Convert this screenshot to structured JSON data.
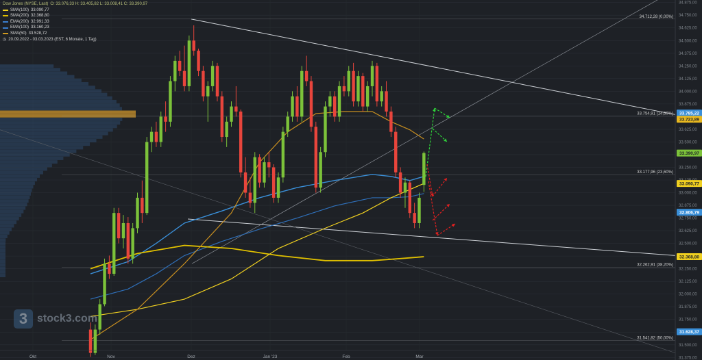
{
  "header": {
    "instrument": "Dow Jones (NYSE, Last)",
    "ohlc": "O: 33.076,33  H: 33.405,82  L: 33.008,41  C: 33.390,97",
    "indicators": [
      {
        "label": "SMA(100)",
        "value": "33.090,77",
        "color": "#f0d020"
      },
      {
        "label": "SMA(200)",
        "value": "32.368,80",
        "color": "#e0c000"
      },
      {
        "label": "EMA(200)",
        "value": "32.991,33",
        "color": "#3a7fd0"
      },
      {
        "label": "EMA(100)",
        "value": "33.160,23",
        "color": "#3a7fd0"
      },
      {
        "label": "SMA(50)",
        "value": "33.528,72",
        "color": "#d09a20"
      }
    ],
    "range": "20.09.2022 - 03.03.2023   (EST, 6 Monate, 1 Tag)"
  },
  "logo": {
    "mark": "3",
    "text": "stock3.com"
  },
  "chart_data": {
    "type": "candlestick",
    "title": "Dow Jones (NYSE, Last)",
    "ylim": [
      31350,
      34900
    ],
    "y_ticks": [
      "31.375,00",
      "31.500,00",
      "31.625,00",
      "31.750,00",
      "31.875,00",
      "32.000,00",
      "32.125,00",
      "32.250,00",
      "32.375,00",
      "32.500,00",
      "32.625,00",
      "32.750,00",
      "32.875,00",
      "33.000,00",
      "33.125,00",
      "33.250,00",
      "33.375,00",
      "33.500,00",
      "33.625,00",
      "33.750,00",
      "33.875,00",
      "34.000,00",
      "34.125,00",
      "34.250,00",
      "34.375,00",
      "34.500,00",
      "34.625,00",
      "34.750,00",
      "34.875,00"
    ],
    "x_labels": [
      "Okt",
      "Nov",
      "Dez",
      "Jan '23",
      "Feb",
      "Mar"
    ],
    "fib_levels": [
      {
        "label": "34.712,28 (0,00%)",
        "value": 34712.28
      },
      {
        "label": "33.754,91 (14,60%)",
        "value": 33754.91
      },
      {
        "label": "33.177,96 (23,60%)",
        "value": 33177.96
      },
      {
        "label": "32.262,91 (38,20%)",
        "value": 32262.91
      },
      {
        "label": "31.541,82 (50,00%)",
        "value": 31541.82
      }
    ],
    "price_tags": [
      {
        "label": "33.785,22",
        "value": 33785.22,
        "color": "#3a8fd8",
        "text_color": "#ffffff"
      },
      {
        "label": "33.723,89",
        "value": 33723.89,
        "color": "#e8b820",
        "text_color": "#1e2126"
      },
      {
        "label": "33.390,97",
        "value": 33390.97,
        "color": "#7cc23a",
        "text_color": "#1e2126"
      },
      {
        "label": "33.090,77",
        "value": 33090.77,
        "color": "#f0d020",
        "text_color": "#1e2126"
      },
      {
        "label": "32.806,79",
        "value": 32806.79,
        "color": "#3a8fd8",
        "text_color": "#ffffff"
      },
      {
        "label": "32.368,80",
        "value": 32368.8,
        "color": "#f0d020",
        "text_color": "#1e2126"
      },
      {
        "label": "31.628,37",
        "value": 31628.37,
        "color": "#3a8fd8",
        "text_color": "#ffffff"
      }
    ],
    "candles_ohlc": [
      [
        31650,
        31720,
        31380,
        31420
      ],
      [
        31420,
        31700,
        31400,
        31650
      ],
      [
        31650,
        31950,
        31600,
        31900
      ],
      [
        31900,
        32350,
        31880,
        32300
      ],
      [
        32300,
        32380,
        32150,
        32200
      ],
      [
        32200,
        32850,
        32180,
        32800
      ],
      [
        32800,
        32850,
        32500,
        32550
      ],
      [
        32550,
        32780,
        32450,
        32700
      ],
      [
        32700,
        32760,
        32300,
        32350
      ],
      [
        32350,
        32700,
        32300,
        32650
      ],
      [
        32650,
        33000,
        32600,
        32950
      ],
      [
        32950,
        33120,
        32700,
        32800
      ],
      [
        32800,
        33550,
        32780,
        33500
      ],
      [
        33500,
        33650,
        33400,
        33600
      ],
      [
        33600,
        33700,
        33450,
        33500
      ],
      [
        33500,
        33800,
        33450,
        33750
      ],
      [
        33750,
        33900,
        33600,
        33700
      ],
      [
        33700,
        34150,
        33650,
        34100
      ],
      [
        34100,
        34350,
        34000,
        34300
      ],
      [
        34300,
        34400,
        34150,
        34200
      ],
      [
        34200,
        34450,
        34000,
        34050
      ],
      [
        34050,
        34550,
        34000,
        34500
      ],
      [
        34500,
        34650,
        34350,
        34400
      ],
      [
        34400,
        34420,
        34150,
        34200
      ],
      [
        34200,
        34250,
        33900,
        33950
      ],
      [
        33950,
        34100,
        33700,
        34050
      ],
      [
        34050,
        34300,
        34000,
        34250
      ],
      [
        34250,
        34280,
        33900,
        33950
      ],
      [
        33950,
        34000,
        33500,
        33550
      ],
      [
        33550,
        33750,
        33450,
        33700
      ],
      [
        33700,
        33900,
        33650,
        33850
      ],
      [
        33850,
        34050,
        33750,
        33800
      ],
      [
        33800,
        33820,
        33150,
        33200
      ],
      [
        33200,
        33350,
        32950,
        33000
      ],
      [
        33000,
        33150,
        32850,
        32900
      ],
      [
        32900,
        33400,
        32800,
        33350
      ],
      [
        33350,
        33380,
        33050,
        33100
      ],
      [
        33100,
        33350,
        33050,
        33300
      ],
      [
        33300,
        33400,
        33150,
        33250
      ],
      [
        33250,
        33280,
        32900,
        32950
      ],
      [
        32950,
        33200,
        32900,
        33150
      ],
      [
        33150,
        33650,
        33100,
        33600
      ],
      [
        33600,
        33800,
        33550,
        33750
      ],
      [
        33750,
        34000,
        33700,
        33950
      ],
      [
        33950,
        34050,
        33700,
        33750
      ],
      [
        33750,
        34250,
        33700,
        34200
      ],
      [
        34200,
        34350,
        34050,
        34100
      ],
      [
        34100,
        34150,
        33600,
        33650
      ],
      [
        33650,
        33700,
        33000,
        33050
      ],
      [
        33050,
        33450,
        33000,
        33400
      ],
      [
        33400,
        33900,
        33350,
        33850
      ],
      [
        33850,
        34000,
        33750,
        33950
      ],
      [
        33950,
        34000,
        33700,
        33750
      ],
      [
        33750,
        34100,
        33700,
        34050
      ],
      [
        34050,
        34150,
        33950,
        34000
      ],
      [
        34000,
        34250,
        33950,
        34200
      ],
      [
        34200,
        34280,
        33850,
        33900
      ],
      [
        33900,
        34200,
        33850,
        34150
      ],
      [
        34150,
        34180,
        33800,
        33850
      ],
      [
        33850,
        34100,
        33800,
        34050
      ],
      [
        34050,
        34300,
        33950,
        34250
      ],
      [
        34250,
        34280,
        33850,
        33900
      ],
      [
        33900,
        34050,
        33850,
        34000
      ],
      [
        34000,
        34100,
        33750,
        33800
      ],
      [
        33800,
        33850,
        33550,
        33600
      ],
      [
        33600,
        33650,
        33150,
        33200
      ],
      [
        33200,
        33250,
        32950,
        33000
      ],
      [
        33000,
        33150,
        32850,
        33100
      ],
      [
        33100,
        33120,
        32750,
        32800
      ],
      [
        32800,
        32900,
        32650,
        32700
      ],
      [
        32700,
        33000,
        32650,
        32950
      ],
      [
        33076.33,
        33405.82,
        33008.41,
        33390.97
      ]
    ],
    "ema100": [
      [
        0,
        32200
      ],
      [
        8,
        32320
      ],
      [
        14,
        32500
      ],
      [
        20,
        32700
      ],
      [
        28,
        32820
      ],
      [
        36,
        32950
      ],
      [
        44,
        33050
      ],
      [
        52,
        33120
      ],
      [
        60,
        33180
      ],
      [
        64,
        33160
      ],
      [
        68,
        33120
      ],
      [
        71,
        33160.23
      ]
    ],
    "ema200": [
      [
        0,
        31950
      ],
      [
        8,
        32050
      ],
      [
        14,
        32200
      ],
      [
        20,
        32380
      ],
      [
        28,
        32520
      ],
      [
        36,
        32640
      ],
      [
        44,
        32750
      ],
      [
        52,
        32870
      ],
      [
        60,
        32950
      ],
      [
        64,
        32950
      ],
      [
        68,
        32960
      ],
      [
        71,
        32991.33
      ]
    ],
    "sma200": [
      [
        0,
        32250
      ],
      [
        10,
        32400
      ],
      [
        20,
        32480
      ],
      [
        30,
        32450
      ],
      [
        40,
        32380
      ],
      [
        50,
        32330
      ],
      [
        60,
        32330
      ],
      [
        66,
        32350
      ],
      [
        71,
        32368.8
      ]
    ],
    "sma100": [
      [
        0,
        31780
      ],
      [
        10,
        31850
      ],
      [
        20,
        31950
      ],
      [
        30,
        32150
      ],
      [
        40,
        32450
      ],
      [
        50,
        32650
      ],
      [
        58,
        32800
      ],
      [
        64,
        32950
      ],
      [
        71,
        33090.77
      ]
    ],
    "sma50": [
      [
        0,
        31550
      ],
      [
        10,
        31850
      ],
      [
        20,
        32300
      ],
      [
        30,
        32800
      ],
      [
        36,
        33300
      ],
      [
        42,
        33600
      ],
      [
        48,
        33780
      ],
      [
        54,
        33800
      ],
      [
        60,
        33800
      ],
      [
        64,
        33700
      ],
      [
        68,
        33620
      ],
      [
        71,
        33528.72
      ]
    ]
  }
}
